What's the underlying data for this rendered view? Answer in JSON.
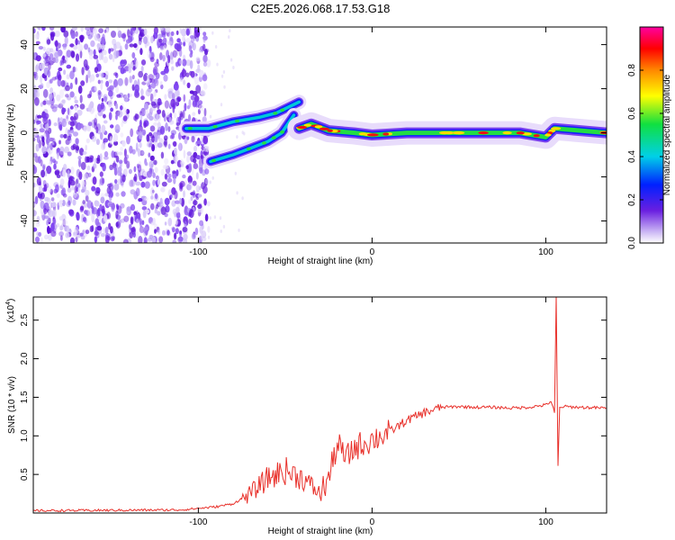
{
  "title": "C2E5.2026.068.17.53.G18",
  "chart_data": [
    {
      "type": "heatmap",
      "name": "spectrogram",
      "xlabel": "Height of straight line (km)",
      "ylabel": "Frequency (Hz)",
      "xlim": [
        -195,
        135
      ],
      "ylim": [
        -50,
        48
      ],
      "xticks": [
        -100,
        0,
        100
      ],
      "xtick_labels": [
        "-100",
        "0",
        "100"
      ],
      "yticks": [
        -40,
        -20,
        0,
        20,
        40
      ],
      "ytick_labels": [
        "-40",
        "-20",
        "0",
        "20",
        "40"
      ],
      "noise_region_x": [
        -195,
        -94
      ],
      "tracks": [
        {
          "name": "upper-branch",
          "x": [
            -107,
            -94,
            -80,
            -65,
            -55,
            -42
          ],
          "y": [
            2,
            2,
            5,
            7,
            9,
            14
          ]
        },
        {
          "name": "lower-branch",
          "x": [
            -93,
            -80,
            -70,
            -60,
            -52,
            -45
          ],
          "y": [
            -13,
            -10,
            -7,
            -4,
            0,
            8
          ]
        },
        {
          "name": "main-signal",
          "x": [
            -42,
            -35,
            -25,
            -10,
            0,
            20,
            50,
            85,
            100,
            105,
            135
          ],
          "y": [
            2,
            4,
            1,
            0,
            -1,
            0,
            0,
            0,
            -2,
            2,
            0
          ]
        }
      ],
      "colorbar": {
        "label": "Normalized spectral amplitude",
        "range": [
          0,
          1
        ],
        "ticks": [
          0.0,
          0.2,
          0.4,
          0.6,
          0.8
        ],
        "tick_labels": [
          "0.0",
          "0.2",
          "0.4",
          "0.6",
          "0.8"
        ]
      }
    },
    {
      "type": "line",
      "name": "snr",
      "xlabel": "Height of straight line (km)",
      "ylabel": "SNR (10 * v/v)",
      "scale_label": "(x10",
      "scale_exp": "4",
      "scale_close": ")",
      "xlim": [
        -195,
        135
      ],
      "ylim": [
        0,
        2.8
      ],
      "xticks": [
        -100,
        0,
        100
      ],
      "xtick_labels": [
        "-100",
        "0",
        "100"
      ],
      "yticks": [
        0.5,
        1.0,
        1.5,
        2.0,
        2.5
      ],
      "ytick_labels": [
        "0.5",
        "1.0",
        "1.5",
        "2.0",
        "2.5"
      ],
      "color": "#e8302a",
      "series": [
        {
          "name": "SNR",
          "x": [
            -195,
            -110,
            -90,
            -80,
            -70,
            -60,
            -50,
            -40,
            -30,
            -25,
            -20,
            -15,
            -10,
            -5,
            0,
            10,
            20,
            30,
            40,
            50,
            60,
            70,
            80,
            90,
            100,
            103,
            105,
            106,
            107,
            108,
            110,
            120,
            135
          ],
          "y": [
            0.03,
            0.04,
            0.08,
            0.12,
            0.25,
            0.45,
            0.55,
            0.45,
            0.25,
            0.45,
            0.9,
            0.7,
            0.85,
            0.9,
            0.95,
            1.05,
            1.2,
            1.3,
            1.37,
            1.38,
            1.37,
            1.37,
            1.36,
            1.37,
            1.4,
            1.45,
            1.3,
            2.8,
            0.6,
            1.36,
            1.38,
            1.37,
            1.36
          ]
        }
      ]
    }
  ]
}
